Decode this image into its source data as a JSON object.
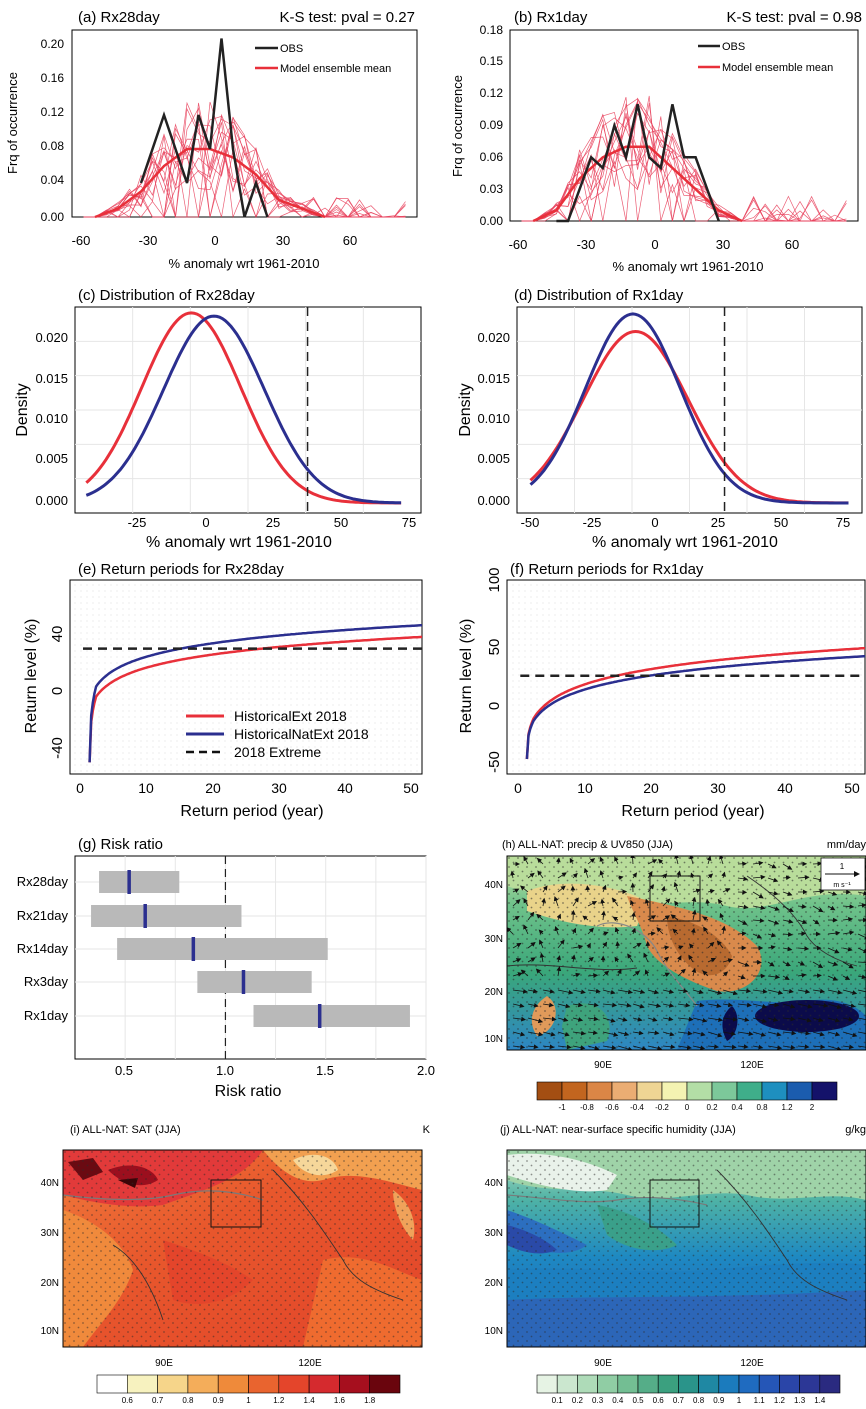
{
  "panels": {
    "a": {
      "title": "(a) Rx28day",
      "test": "K-S test: pval = 0.27",
      "xlabel": "% anomaly wrt 1961-2010",
      "ylabel": "Frq of occurrence",
      "yticks": [
        "0.00",
        "0.04",
        "0.08",
        "0.12",
        "0.16",
        "0.20"
      ],
      "xticks": [
        "-60",
        "-30",
        "0",
        "30",
        "60"
      ],
      "legend": [
        "OBS",
        "Model ensemble mean"
      ]
    },
    "b": {
      "title": "(b) Rx1day",
      "test": "K-S test: pval = 0.98",
      "xlabel": "% anomaly wrt 1961-2010",
      "ylabel": "Frq of occurrence",
      "yticks": [
        "0.00",
        "0.03",
        "0.06",
        "0.09",
        "0.12",
        "0.15",
        "0.18"
      ],
      "xticks": [
        "-60",
        "-30",
        "0",
        "30",
        "60"
      ],
      "legend": [
        "OBS",
        "Model ensemble mean"
      ]
    },
    "c": {
      "title": "(c) Distribution of Rx28day",
      "xlabel": "% anomaly wrt 1961-2010",
      "ylabel": "Density",
      "yticks": [
        "0.000",
        "0.005",
        "0.010",
        "0.015",
        "0.020"
      ],
      "xticks": [
        "-25",
        "0",
        "25",
        "50",
        "75"
      ]
    },
    "d": {
      "title": "(d) Distribution of Rx1day",
      "xlabel": "% anomaly wrt 1961-2010",
      "ylabel": "Density",
      "yticks": [
        "0.000",
        "0.005",
        "0.010",
        "0.015",
        "0.020"
      ],
      "xticks": [
        "-50",
        "-25",
        "0",
        "25",
        "50",
        "75"
      ]
    },
    "e": {
      "title": "(e) Return periods for Rx28day",
      "xlabel": "Return period (year)",
      "ylabel": "Return level (%)",
      "yticks": [
        "-40",
        "0",
        "40"
      ],
      "xticks": [
        "0",
        "10",
        "20",
        "30",
        "40",
        "50"
      ],
      "legend": [
        "HistoricalExt 2018",
        "HistoricalNatExt 2018",
        "2018 Extreme"
      ]
    },
    "f": {
      "title": "(f) Return periods for Rx1day",
      "xlabel": "Return period (year)",
      "ylabel": "Return level (%)",
      "yticks": [
        "-50",
        "0",
        "50",
        "100"
      ],
      "xticks": [
        "0",
        "10",
        "20",
        "30",
        "40",
        "50"
      ]
    },
    "g": {
      "title": "(g) Risk ratio",
      "xlabel": "Risk ratio",
      "xticks": [
        "0.5",
        "1.0",
        "1.5",
        "2.0"
      ],
      "rows": [
        "Rx28day",
        "Rx21day",
        "Rx14day",
        "Rx3day",
        "Rx1day"
      ]
    },
    "h": {
      "title": "(h) ALL-NAT: precip & UV850 (JJA)",
      "unit": "mm/day",
      "vector_ref": "1",
      "vector_unit": "m s⁻¹",
      "colorbar": [
        "-1",
        "-0.8",
        "-0.6",
        "-0.4",
        "-0.2",
        "0",
        "0.2",
        "0.4",
        "0.8",
        "1.2",
        "2"
      ]
    },
    "i": {
      "title": "(i) ALL-NAT: SAT (JJA)",
      "unit": "K",
      "colorbar": [
        "0.6",
        "0.7",
        "0.8",
        "0.9",
        "1",
        "1.2",
        "1.4",
        "1.6",
        "1.8"
      ]
    },
    "j": {
      "title": "(j) ALL-NAT: near-surface specific humidity (JJA)",
      "unit": "g/kg",
      "colorbar": [
        "0.1",
        "0.2",
        "0.3",
        "0.4",
        "0.5",
        "0.6",
        "0.7",
        "0.8",
        "0.9",
        "1",
        "1.1",
        "1.2",
        "1.3",
        "1.4"
      ]
    },
    "maps": {
      "lat": [
        "40N",
        "30N",
        "20N",
        "10N"
      ],
      "lon": [
        "90E",
        "120E"
      ]
    }
  },
  "colors": {
    "obs": "#222222",
    "model": "#e8303a",
    "hist": "#e8303a",
    "nat": "#2b2f8f",
    "bar": "#b9b9b9",
    "median": "#2b2f8f"
  },
  "chart_data": [
    {
      "type": "line",
      "id": "a",
      "title": "(a) Rx28day",
      "xlabel": "% anomaly wrt 1961-2010",
      "ylabel": "Frq of occurrence",
      "xlim": [
        -60,
        90
      ],
      "ylim": [
        0,
        0.22
      ],
      "series": [
        {
          "name": "OBS",
          "x": [
            -30,
            -25,
            -20,
            -15,
            -10,
            -5,
            0,
            5,
            10,
            15,
            20,
            25
          ],
          "y": [
            0.04,
            0.08,
            0.12,
            0.08,
            0.04,
            0.12,
            0.08,
            0.21,
            0.08,
            0.0,
            0.04,
            0.0
          ]
        },
        {
          "name": "Model ensemble mean",
          "x": [
            -50,
            -40,
            -30,
            -20,
            -10,
            0,
            10,
            20,
            30,
            40,
            50
          ],
          "y": [
            0.0,
            0.01,
            0.03,
            0.06,
            0.08,
            0.08,
            0.07,
            0.05,
            0.02,
            0.01,
            0.0
          ]
        }
      ]
    },
    {
      "type": "line",
      "id": "b",
      "title": "(b) Rx1day",
      "xlabel": "% anomaly wrt 1961-2010",
      "ylabel": "Frq of occurrence",
      "xlim": [
        -60,
        90
      ],
      "ylim": [
        0,
        0.18
      ],
      "series": [
        {
          "name": "OBS",
          "x": [
            -40,
            -35,
            -30,
            -25,
            -20,
            -15,
            -10,
            -5,
            0,
            5,
            10,
            15,
            20,
            25,
            30
          ],
          "y": [
            0.0,
            0.0,
            0.03,
            0.06,
            0.05,
            0.09,
            0.06,
            0.11,
            0.06,
            0.05,
            0.11,
            0.06,
            0.06,
            0.03,
            0.0
          ]
        },
        {
          "name": "Model ensemble mean",
          "x": [
            -50,
            -40,
            -30,
            -20,
            -10,
            0,
            10,
            20,
            30,
            40
          ],
          "y": [
            0.0,
            0.01,
            0.04,
            0.06,
            0.07,
            0.07,
            0.05,
            0.03,
            0.01,
            0.0
          ]
        }
      ]
    },
    {
      "type": "line",
      "id": "c",
      "title": "(c) Distribution of Rx28day",
      "xlabel": "% anomaly wrt 1961-2010",
      "ylabel": "Density",
      "xlim": [
        -45,
        77
      ],
      "ylim": [
        -0.0012,
        0.0235
      ],
      "vline": 37,
      "series": [
        {
          "color": "hist",
          "mu": -4,
          "sigma": 17.5,
          "xrange": [
            -41,
            70
          ]
        },
        {
          "color": "nat",
          "mu": 4,
          "sigma": 17.8,
          "xrange": [
            -41,
            70
          ]
        }
      ]
    },
    {
      "type": "line",
      "id": "d",
      "title": "(d) Distribution of Rx1day",
      "xlabel": "% anomaly wrt 1961-2010",
      "ylabel": "Density",
      "xlim": [
        -50,
        78
      ],
      "ylim": [
        -0.0012,
        0.0235
      ],
      "vline": 27,
      "series": [
        {
          "color": "hist",
          "mu": -6,
          "sigma": 19.4,
          "xrange": [
            -45,
            73
          ]
        },
        {
          "color": "nat",
          "mu": -7,
          "sigma": 17.6,
          "xrange": [
            -45,
            73
          ]
        }
      ]
    },
    {
      "type": "line",
      "id": "e",
      "title": "(e) Return periods for Rx28day",
      "xlabel": "Return period (year)",
      "ylabel": "Return level (%)",
      "xlim": [
        -2,
        52
      ],
      "ylim": [
        -48,
        85
      ],
      "hline": 38,
      "series": [
        {
          "name": "HistoricalExt 2018",
          "color": "hist",
          "x": [
            1,
            2,
            5,
            10,
            20,
            30,
            40,
            52
          ],
          "y": [
            -40,
            5,
            21,
            30,
            37,
            40,
            43,
            46
          ]
        },
        {
          "name": "HistoricalNatExt 2018",
          "color": "nat",
          "x": [
            1,
            2,
            5,
            10,
            20,
            30,
            40,
            52
          ],
          "y": [
            -40,
            12,
            29,
            38,
            45,
            49,
            51,
            54
          ]
        },
        {
          "name": "2018 Extreme",
          "color": "obs",
          "x": [
            0,
            52
          ],
          "y": [
            38,
            38
          ]
        }
      ]
    },
    {
      "type": "line",
      "id": "f",
      "title": "(f) Return periods for Rx1day",
      "xlabel": "Return period (year)",
      "ylabel": "Return level (%)",
      "xlim": [
        -2,
        52
      ],
      "ylim": [
        -58,
        110
      ],
      "hline": 27,
      "series": [
        {
          "name": "HistoricalExt 2018",
          "color": "hist",
          "x": [
            1,
            2,
            5,
            10,
            20,
            30,
            40,
            52
          ],
          "y": [
            -45,
            -10,
            12,
            24,
            37,
            43,
            47,
            51
          ]
        },
        {
          "name": "HistoricalNatExt 2018",
          "color": "nat",
          "x": [
            1,
            2,
            5,
            10,
            20,
            30,
            40,
            52
          ],
          "y": [
            -45,
            -12,
            8,
            19,
            29,
            35,
            39,
            44
          ]
        },
        {
          "name": "2018 Extreme",
          "color": "obs",
          "x": [
            0,
            52
          ],
          "y": [
            27,
            27
          ]
        }
      ]
    },
    {
      "type": "bar",
      "id": "g",
      "title": "(g) Risk ratio",
      "xlabel": "Risk ratio",
      "xlim": [
        0.25,
        2.0
      ],
      "ref": 1.0,
      "categories": [
        "Rx28day",
        "Rx21day",
        "Rx14day",
        "Rx3day",
        "Rx1day"
      ],
      "low": [
        0.37,
        0.33,
        0.46,
        0.86,
        1.14
      ],
      "high": [
        0.77,
        1.08,
        1.51,
        1.43,
        1.92
      ],
      "median": [
        0.52,
        0.6,
        0.84,
        1.09,
        1.47
      ]
    }
  ]
}
